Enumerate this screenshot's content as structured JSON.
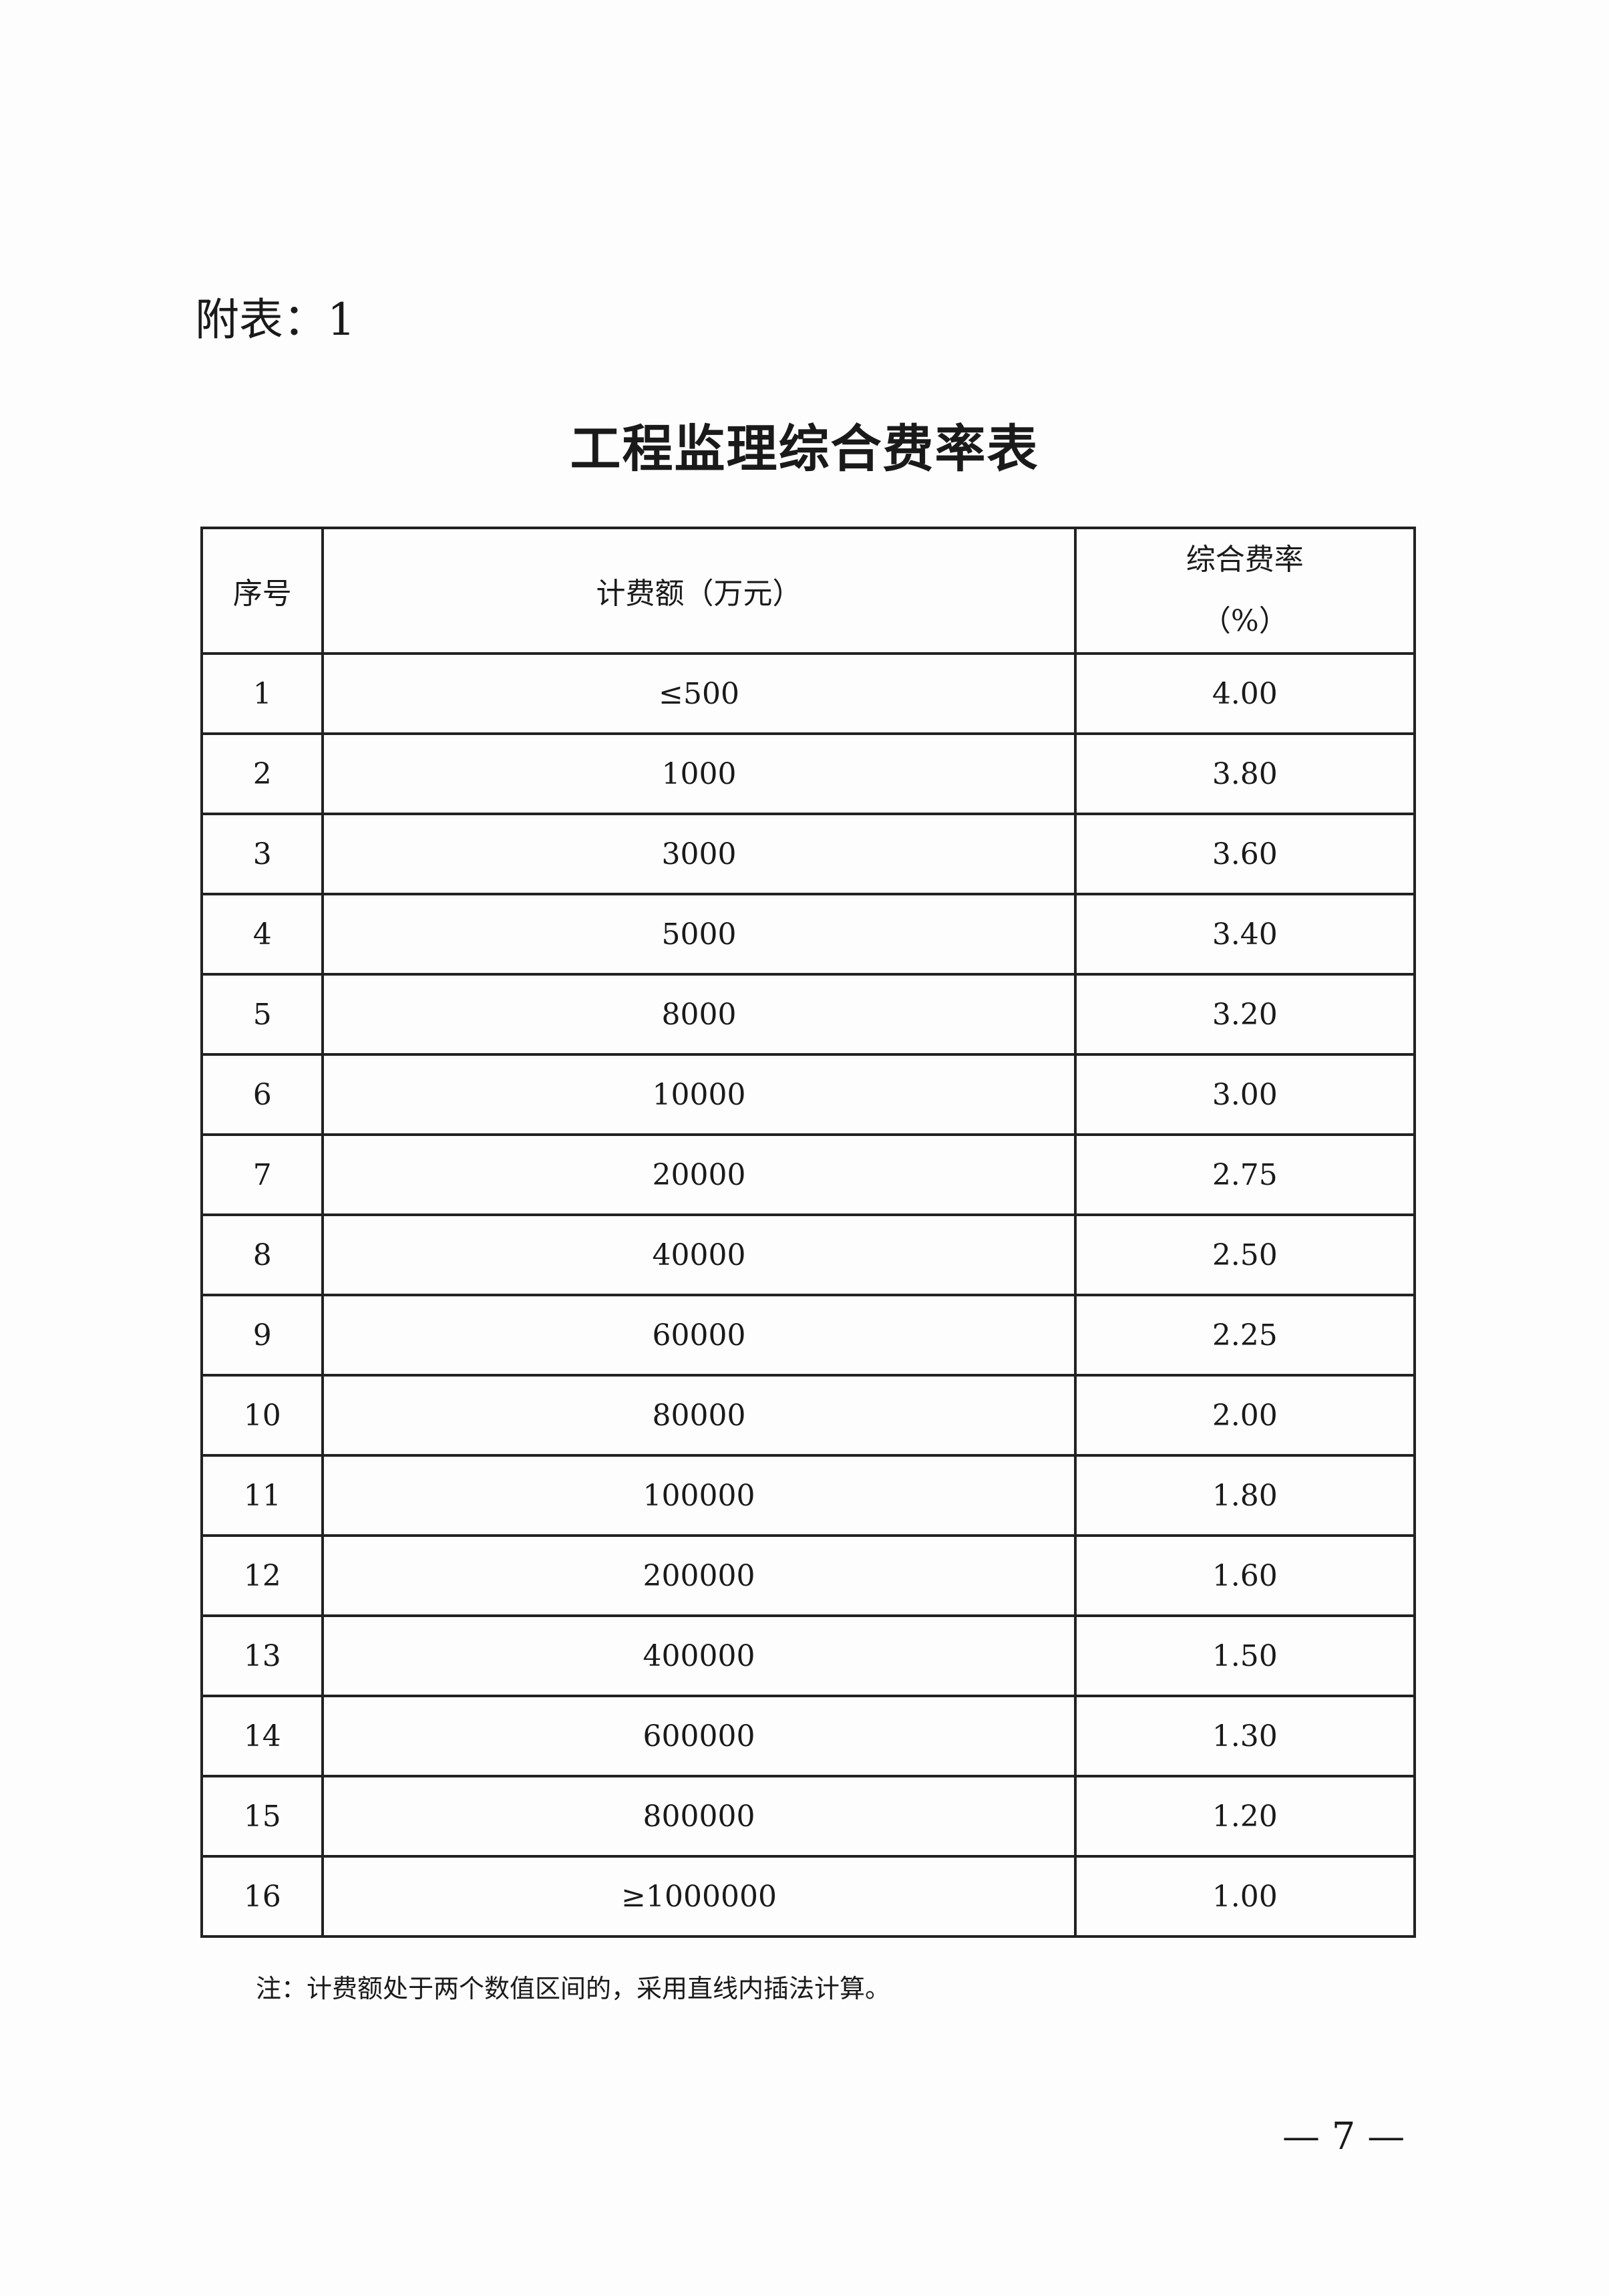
{
  "attachment_label": "附表：1",
  "title": "工程监理综合费率表",
  "table": {
    "headers": {
      "index": "序号",
      "fee_base": "计费额（万元）",
      "rate_line1": "综合费率",
      "rate_line2": "（%）"
    },
    "rows": [
      {
        "index": "1",
        "fee_base": "≤500",
        "rate": "4.00"
      },
      {
        "index": "2",
        "fee_base": "1000",
        "rate": "3.80"
      },
      {
        "index": "3",
        "fee_base": "3000",
        "rate": "3.60"
      },
      {
        "index": "4",
        "fee_base": "5000",
        "rate": "3.40"
      },
      {
        "index": "5",
        "fee_base": "8000",
        "rate": "3.20"
      },
      {
        "index": "6",
        "fee_base": "10000",
        "rate": "3.00"
      },
      {
        "index": "7",
        "fee_base": "20000",
        "rate": "2.75"
      },
      {
        "index": "8",
        "fee_base": "40000",
        "rate": "2.50"
      },
      {
        "index": "9",
        "fee_base": "60000",
        "rate": "2.25"
      },
      {
        "index": "10",
        "fee_base": "80000",
        "rate": "2.00"
      },
      {
        "index": "11",
        "fee_base": "100000",
        "rate": "1.80"
      },
      {
        "index": "12",
        "fee_base": "200000",
        "rate": "1.60"
      },
      {
        "index": "13",
        "fee_base": "400000",
        "rate": "1.50"
      },
      {
        "index": "14",
        "fee_base": "600000",
        "rate": "1.30"
      },
      {
        "index": "15",
        "fee_base": "800000",
        "rate": "1.20"
      },
      {
        "index": "16",
        "fee_base": "≥1000000",
        "rate": "1.00"
      }
    ]
  },
  "note": "注：计费额处于两个数值区间的，采用直线内插法计算。",
  "page_number": "— 7 —"
}
